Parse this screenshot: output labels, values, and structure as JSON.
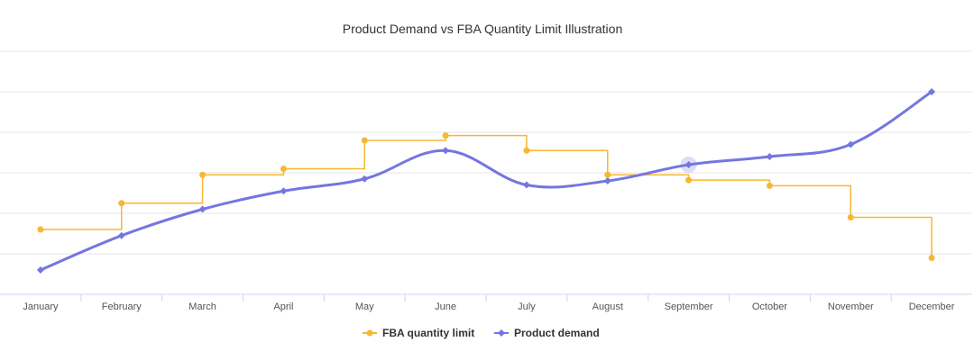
{
  "chart_data": {
    "type": "line",
    "title": "Product Demand vs FBA Quantity Limit Illustration",
    "categories": [
      "January",
      "February",
      "March",
      "April",
      "May",
      "June",
      "July",
      "August",
      "September",
      "October",
      "November",
      "December"
    ],
    "ylim": [
      0,
      6
    ],
    "grid": true,
    "legend_position": "bottom-center",
    "series": [
      {
        "name": "FBA quantity limit",
        "style": "step",
        "color": "#f7b731",
        "values": [
          1.6,
          2.25,
          2.95,
          3.1,
          3.8,
          3.92,
          3.55,
          2.95,
          2.82,
          2.68,
          1.9,
          0.9
        ]
      },
      {
        "name": "Product demand",
        "style": "spline",
        "color": "#7476e0",
        "values": [
          0.6,
          1.45,
          2.1,
          2.55,
          2.85,
          3.55,
          2.7,
          2.8,
          3.2,
          3.4,
          3.7,
          5.0
        ]
      }
    ]
  }
}
